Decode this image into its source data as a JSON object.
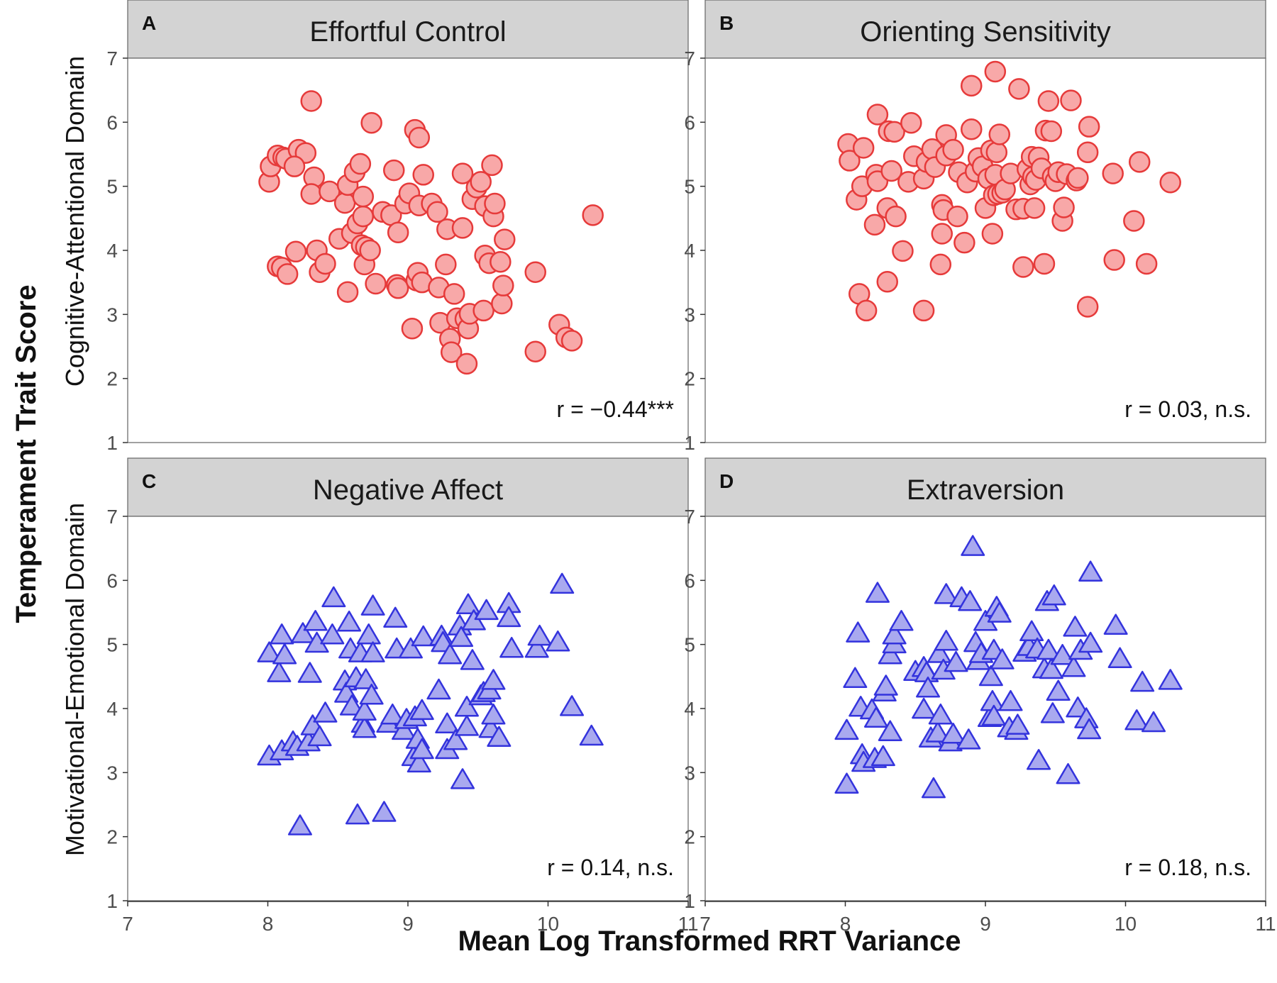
{
  "figure": {
    "y_title": "Temperament Trait Score",
    "x_title": "Mean Log Transformed RRT Variance",
    "row_labels": [
      "Cognitive-Attentional Domain",
      "Motivational-Emotional Domain"
    ]
  },
  "colors": {
    "circle_fill": "#f8a8a8",
    "circle_stroke": "#e63a3a",
    "triangle_fill": "#a9a9ef",
    "triangle_stroke": "#3333dd",
    "strip": "#d3d3d3"
  },
  "chart_data": [
    {
      "type": "scatter",
      "panel": "A",
      "title": "Effortful Control",
      "annotation": "r = −0.44***",
      "marker": "circle",
      "xlim": [
        7,
        11
      ],
      "ylim": [
        1,
        7
      ],
      "x_ticks": [
        7,
        8,
        9,
        10,
        11
      ],
      "y_ticks": [
        1,
        2,
        3,
        4,
        5,
        6,
        7
      ],
      "points": [
        [
          8.01,
          5.07
        ],
        [
          8.02,
          5.31
        ],
        [
          8.07,
          5.48
        ],
        [
          8.11,
          5.45
        ],
        [
          8.13,
          5.43
        ],
        [
          8.22,
          5.57
        ],
        [
          8.27,
          5.52
        ],
        [
          8.31,
          6.33
        ],
        [
          8.33,
          5.14
        ],
        [
          8.31,
          4.88
        ],
        [
          8.19,
          5.31
        ],
        [
          8.44,
          4.92
        ],
        [
          8.51,
          4.18
        ],
        [
          8.55,
          4.74
        ],
        [
          8.57,
          5.02
        ],
        [
          8.6,
          4.27
        ],
        [
          8.62,
          5.22
        ],
        [
          8.64,
          4.42
        ],
        [
          8.66,
          5.35
        ],
        [
          8.68,
          4.53
        ],
        [
          8.68,
          4.84
        ],
        [
          8.74,
          5.99
        ],
        [
          8.07,
          3.75
        ],
        [
          8.1,
          3.73
        ],
        [
          8.14,
          3.63
        ],
        [
          8.2,
          3.98
        ],
        [
          8.35,
          4.0
        ],
        [
          8.37,
          3.66
        ],
        [
          8.41,
          3.79
        ],
        [
          8.57,
          3.35
        ],
        [
          8.67,
          4.08
        ],
        [
          8.7,
          4.05
        ],
        [
          8.69,
          3.78
        ],
        [
          8.73,
          4.0
        ],
        [
          8.77,
          3.48
        ],
        [
          8.82,
          4.6
        ],
        [
          8.88,
          4.55
        ],
        [
          8.9,
          5.25
        ],
        [
          8.92,
          3.46
        ],
        [
          8.93,
          3.41
        ],
        [
          8.93,
          4.28
        ],
        [
          8.98,
          4.73
        ],
        [
          9.01,
          4.89
        ],
        [
          9.03,
          2.78
        ],
        [
          9.05,
          5.88
        ],
        [
          9.06,
          3.53
        ],
        [
          9.07,
          3.65
        ],
        [
          9.08,
          5.76
        ],
        [
          9.08,
          4.7
        ],
        [
          9.1,
          3.5
        ],
        [
          9.11,
          5.18
        ],
        [
          9.17,
          4.73
        ],
        [
          9.21,
          4.6
        ],
        [
          9.22,
          3.42
        ],
        [
          9.23,
          2.87
        ],
        [
          9.27,
          3.78
        ],
        [
          9.28,
          4.33
        ],
        [
          9.3,
          2.62
        ],
        [
          9.31,
          2.41
        ],
        [
          9.33,
          3.32
        ],
        [
          9.35,
          2.94
        ],
        [
          9.39,
          4.35
        ],
        [
          9.39,
          5.2
        ],
        [
          9.41,
          2.93
        ],
        [
          9.42,
          2.23
        ],
        [
          9.43,
          2.78
        ],
        [
          9.44,
          3.01
        ],
        [
          9.46,
          4.8
        ],
        [
          9.49,
          4.98
        ],
        [
          9.52,
          5.07
        ],
        [
          9.54,
          3.06
        ],
        [
          9.55,
          4.69
        ],
        [
          9.55,
          3.92
        ],
        [
          9.58,
          3.8
        ],
        [
          9.6,
          5.33
        ],
        [
          9.61,
          4.53
        ],
        [
          9.62,
          4.73
        ],
        [
          9.66,
          3.82
        ],
        [
          9.67,
          3.17
        ],
        [
          9.68,
          3.45
        ],
        [
          9.69,
          4.17
        ],
        [
          9.91,
          3.66
        ],
        [
          9.91,
          2.42
        ],
        [
          10.08,
          2.84
        ],
        [
          10.13,
          2.64
        ],
        [
          10.17,
          2.59
        ],
        [
          10.32,
          4.55
        ]
      ]
    },
    {
      "type": "scatter",
      "panel": "B",
      "title": "Orienting Sensitivity",
      "annotation": "r = 0.03, n.s.",
      "marker": "circle",
      "xlim": [
        7,
        11
      ],
      "ylim": [
        1,
        7
      ],
      "x_ticks": [
        7,
        8,
        9,
        10,
        11
      ],
      "y_ticks": [
        1,
        2,
        3,
        4,
        5,
        6,
        7
      ],
      "points": [
        [
          8.02,
          5.66
        ],
        [
          8.03,
          5.4
        ],
        [
          8.08,
          4.79
        ],
        [
          8.1,
          3.32
        ],
        [
          8.12,
          5.0
        ],
        [
          8.13,
          5.6
        ],
        [
          8.15,
          3.06
        ],
        [
          8.21,
          4.4
        ],
        [
          8.22,
          5.18
        ],
        [
          8.23,
          5.08
        ],
        [
          8.23,
          6.12
        ],
        [
          8.3,
          3.51
        ],
        [
          8.3,
          4.66
        ],
        [
          8.31,
          5.86
        ],
        [
          8.33,
          5.24
        ],
        [
          8.35,
          5.85
        ],
        [
          8.36,
          4.53
        ],
        [
          8.41,
          3.99
        ],
        [
          8.45,
          5.07
        ],
        [
          8.47,
          5.99
        ],
        [
          8.49,
          5.47
        ],
        [
          8.56,
          3.06
        ],
        [
          8.56,
          5.12
        ],
        [
          8.58,
          5.38
        ],
        [
          8.62,
          5.58
        ],
        [
          8.64,
          5.3
        ],
        [
          8.68,
          3.78
        ],
        [
          8.69,
          4.71
        ],
        [
          8.69,
          4.26
        ],
        [
          8.7,
          4.63
        ],
        [
          8.72,
          5.48
        ],
        [
          8.72,
          5.8
        ],
        [
          8.77,
          5.57
        ],
        [
          8.8,
          4.53
        ],
        [
          8.81,
          5.22
        ],
        [
          8.85,
          4.12
        ],
        [
          8.87,
          5.06
        ],
        [
          8.9,
          5.89
        ],
        [
          8.9,
          6.57
        ],
        [
          8.93,
          5.23
        ],
        [
          8.95,
          5.44
        ],
        [
          8.98,
          5.31
        ],
        [
          9.0,
          4.66
        ],
        [
          9.02,
          5.12
        ],
        [
          9.04,
          5.56
        ],
        [
          9.05,
          4.26
        ],
        [
          9.06,
          4.86
        ],
        [
          9.07,
          5.18
        ],
        [
          9.07,
          6.79
        ],
        [
          9.08,
          5.53
        ],
        [
          9.09,
          4.88
        ],
        [
          9.1,
          5.81
        ],
        [
          9.12,
          4.9
        ],
        [
          9.14,
          4.95
        ],
        [
          9.18,
          5.2
        ],
        [
          9.22,
          4.64
        ],
        [
          9.24,
          6.52
        ],
        [
          9.27,
          3.74
        ],
        [
          9.27,
          4.65
        ],
        [
          9.3,
          5.27
        ],
        [
          9.32,
          5.03
        ],
        [
          9.33,
          5.46
        ],
        [
          9.34,
          5.15
        ],
        [
          9.35,
          4.66
        ],
        [
          9.36,
          5.1
        ],
        [
          9.38,
          5.45
        ],
        [
          9.4,
          5.28
        ],
        [
          9.42,
          3.79
        ],
        [
          9.43,
          5.87
        ],
        [
          9.45,
          6.33
        ],
        [
          9.47,
          5.86
        ],
        [
          9.48,
          5.15
        ],
        [
          9.5,
          5.08
        ],
        [
          9.52,
          5.22
        ],
        [
          9.55,
          4.46
        ],
        [
          9.56,
          4.67
        ],
        [
          9.58,
          5.19
        ],
        [
          9.61,
          6.34
        ],
        [
          9.65,
          5.09
        ],
        [
          9.66,
          5.13
        ],
        [
          9.73,
          3.12
        ],
        [
          9.74,
          5.93
        ],
        [
          9.73,
          5.53
        ],
        [
          9.91,
          5.2
        ],
        [
          9.92,
          3.85
        ],
        [
          10.06,
          4.46
        ],
        [
          10.1,
          5.38
        ],
        [
          10.15,
          3.79
        ],
        [
          10.32,
          5.06
        ]
      ]
    },
    {
      "type": "scatter",
      "panel": "C",
      "title": "Negative Affect",
      "annotation": "r = 0.14, n.s.",
      "marker": "triangle",
      "xlim": [
        7,
        11
      ],
      "ylim": [
        1,
        7
      ],
      "x_ticks": [
        7,
        8,
        9,
        10,
        11
      ],
      "y_ticks": [
        1,
        2,
        3,
        4,
        5,
        6,
        7
      ],
      "points": [
        [
          8.01,
          4.86
        ],
        [
          8.01,
          3.25
        ],
        [
          8.08,
          4.55
        ],
        [
          8.1,
          5.14
        ],
        [
          8.1,
          3.33
        ],
        [
          8.12,
          4.83
        ],
        [
          8.18,
          3.47
        ],
        [
          8.21,
          3.4
        ],
        [
          8.23,
          2.16
        ],
        [
          8.25,
          5.16
        ],
        [
          8.29,
          3.47
        ],
        [
          8.3,
          4.54
        ],
        [
          8.32,
          3.72
        ],
        [
          8.34,
          5.35
        ],
        [
          8.35,
          5.01
        ],
        [
          8.37,
          3.55
        ],
        [
          8.41,
          3.92
        ],
        [
          8.46,
          5.14
        ],
        [
          8.47,
          5.72
        ],
        [
          8.55,
          4.42
        ],
        [
          8.56,
          4.23
        ],
        [
          8.58,
          5.34
        ],
        [
          8.59,
          4.92
        ],
        [
          8.6,
          4.03
        ],
        [
          8.63,
          4.47
        ],
        [
          8.64,
          2.33
        ],
        [
          8.66,
          4.86
        ],
        [
          8.68,
          3.76
        ],
        [
          8.69,
          3.68
        ],
        [
          8.69,
          3.95
        ],
        [
          8.7,
          4.44
        ],
        [
          8.72,
          5.14
        ],
        [
          8.74,
          4.2
        ],
        [
          8.75,
          4.86
        ],
        [
          8.75,
          5.59
        ],
        [
          8.83,
          2.37
        ],
        [
          8.86,
          3.76
        ],
        [
          8.89,
          3.89
        ],
        [
          8.91,
          5.4
        ],
        [
          8.92,
          4.92
        ],
        [
          8.97,
          3.65
        ],
        [
          8.99,
          3.82
        ],
        [
          9.02,
          4.92
        ],
        [
          9.04,
          3.24
        ],
        [
          9.05,
          3.86
        ],
        [
          9.07,
          3.51
        ],
        [
          9.08,
          3.14
        ],
        [
          9.1,
          3.35
        ],
        [
          9.1,
          3.96
        ],
        [
          9.11,
          5.11
        ],
        [
          9.22,
          4.28
        ],
        [
          9.24,
          5.12
        ],
        [
          9.25,
          5.02
        ],
        [
          9.28,
          3.75
        ],
        [
          9.28,
          3.35
        ],
        [
          9.3,
          4.83
        ],
        [
          9.34,
          3.49
        ],
        [
          9.37,
          5.28
        ],
        [
          9.38,
          5.1
        ],
        [
          9.39,
          2.88
        ],
        [
          9.42,
          4.01
        ],
        [
          9.42,
          3.71
        ],
        [
          9.43,
          5.61
        ],
        [
          9.46,
          4.74
        ],
        [
          9.47,
          5.36
        ],
        [
          9.52,
          4.19
        ],
        [
          9.54,
          4.24
        ],
        [
          9.56,
          5.52
        ],
        [
          9.58,
          4.28
        ],
        [
          9.59,
          3.68
        ],
        [
          9.61,
          4.43
        ],
        [
          9.61,
          3.89
        ],
        [
          9.65,
          3.54
        ],
        [
          9.72,
          5.63
        ],
        [
          9.72,
          5.41
        ],
        [
          9.74,
          4.93
        ],
        [
          9.92,
          4.93
        ],
        [
          9.94,
          5.12
        ],
        [
          10.07,
          5.03
        ],
        [
          10.1,
          5.93
        ],
        [
          10.17,
          4.02
        ],
        [
          10.31,
          3.56
        ]
      ]
    },
    {
      "type": "scatter",
      "panel": "D",
      "title": "Extraversion",
      "annotation": "r = 0.18, n.s.",
      "marker": "triangle",
      "xlim": [
        7,
        11
      ],
      "ylim": [
        1,
        7
      ],
      "x_ticks": [
        7,
        8,
        9,
        10,
        11
      ],
      "y_ticks": [
        1,
        2,
        3,
        4,
        5,
        6,
        7
      ],
      "points": [
        [
          8.01,
          2.81
        ],
        [
          8.01,
          3.65
        ],
        [
          8.07,
          4.46
        ],
        [
          8.09,
          5.17
        ],
        [
          8.11,
          4.01
        ],
        [
          8.12,
          3.27
        ],
        [
          8.13,
          3.15
        ],
        [
          8.19,
          3.97
        ],
        [
          8.21,
          3.21
        ],
        [
          8.22,
          3.84
        ],
        [
          8.23,
          5.79
        ],
        [
          8.27,
          3.24
        ],
        [
          8.28,
          4.25
        ],
        [
          8.29,
          4.34
        ],
        [
          8.32,
          3.63
        ],
        [
          8.32,
          4.83
        ],
        [
          8.35,
          5.0
        ],
        [
          8.35,
          5.14
        ],
        [
          8.4,
          5.35
        ],
        [
          8.5,
          4.57
        ],
        [
          8.56,
          4.63
        ],
        [
          8.56,
          3.98
        ],
        [
          8.58,
          4.55
        ],
        [
          8.59,
          4.31
        ],
        [
          8.61,
          3.53
        ],
        [
          8.63,
          2.74
        ],
        [
          8.66,
          3.61
        ],
        [
          8.67,
          4.85
        ],
        [
          8.68,
          3.89
        ],
        [
          8.7,
          4.59
        ],
        [
          8.72,
          5.77
        ],
        [
          8.72,
          5.04
        ],
        [
          8.75,
          3.47
        ],
        [
          8.77,
          3.59
        ],
        [
          8.79,
          4.71
        ],
        [
          8.83,
          5.72
        ],
        [
          8.88,
          3.5
        ],
        [
          8.89,
          5.66
        ],
        [
          8.91,
          6.52
        ],
        [
          8.93,
          5.02
        ],
        [
          8.95,
          4.74
        ],
        [
          8.97,
          4.85
        ],
        [
          9.0,
          5.35
        ],
        [
          9.03,
          3.85
        ],
        [
          9.04,
          4.49
        ],
        [
          9.05,
          4.1
        ],
        [
          9.06,
          3.87
        ],
        [
          9.06,
          4.9
        ],
        [
          9.08,
          5.57
        ],
        [
          9.1,
          5.48
        ],
        [
          9.12,
          4.75
        ],
        [
          9.17,
          3.69
        ],
        [
          9.18,
          4.1
        ],
        [
          9.22,
          3.65
        ],
        [
          9.23,
          3.73
        ],
        [
          9.28,
          4.87
        ],
        [
          9.31,
          4.96
        ],
        [
          9.33,
          5.19
        ],
        [
          9.37,
          4.92
        ],
        [
          9.38,
          3.18
        ],
        [
          9.42,
          4.61
        ],
        [
          9.44,
          5.66
        ],
        [
          9.45,
          4.9
        ],
        [
          9.47,
          4.6
        ],
        [
          9.48,
          3.91
        ],
        [
          9.49,
          5.75
        ],
        [
          9.52,
          4.26
        ],
        [
          9.55,
          4.82
        ],
        [
          9.59,
          2.96
        ],
        [
          9.63,
          4.63
        ],
        [
          9.64,
          5.26
        ],
        [
          9.66,
          4.0
        ],
        [
          9.68,
          4.9
        ],
        [
          9.72,
          3.83
        ],
        [
          9.74,
          3.66
        ],
        [
          9.75,
          6.12
        ],
        [
          9.75,
          5.01
        ],
        [
          9.93,
          5.29
        ],
        [
          9.96,
          4.77
        ],
        [
          10.08,
          3.8
        ],
        [
          10.12,
          4.4
        ],
        [
          10.2,
          3.77
        ],
        [
          10.32,
          4.43
        ]
      ]
    }
  ]
}
